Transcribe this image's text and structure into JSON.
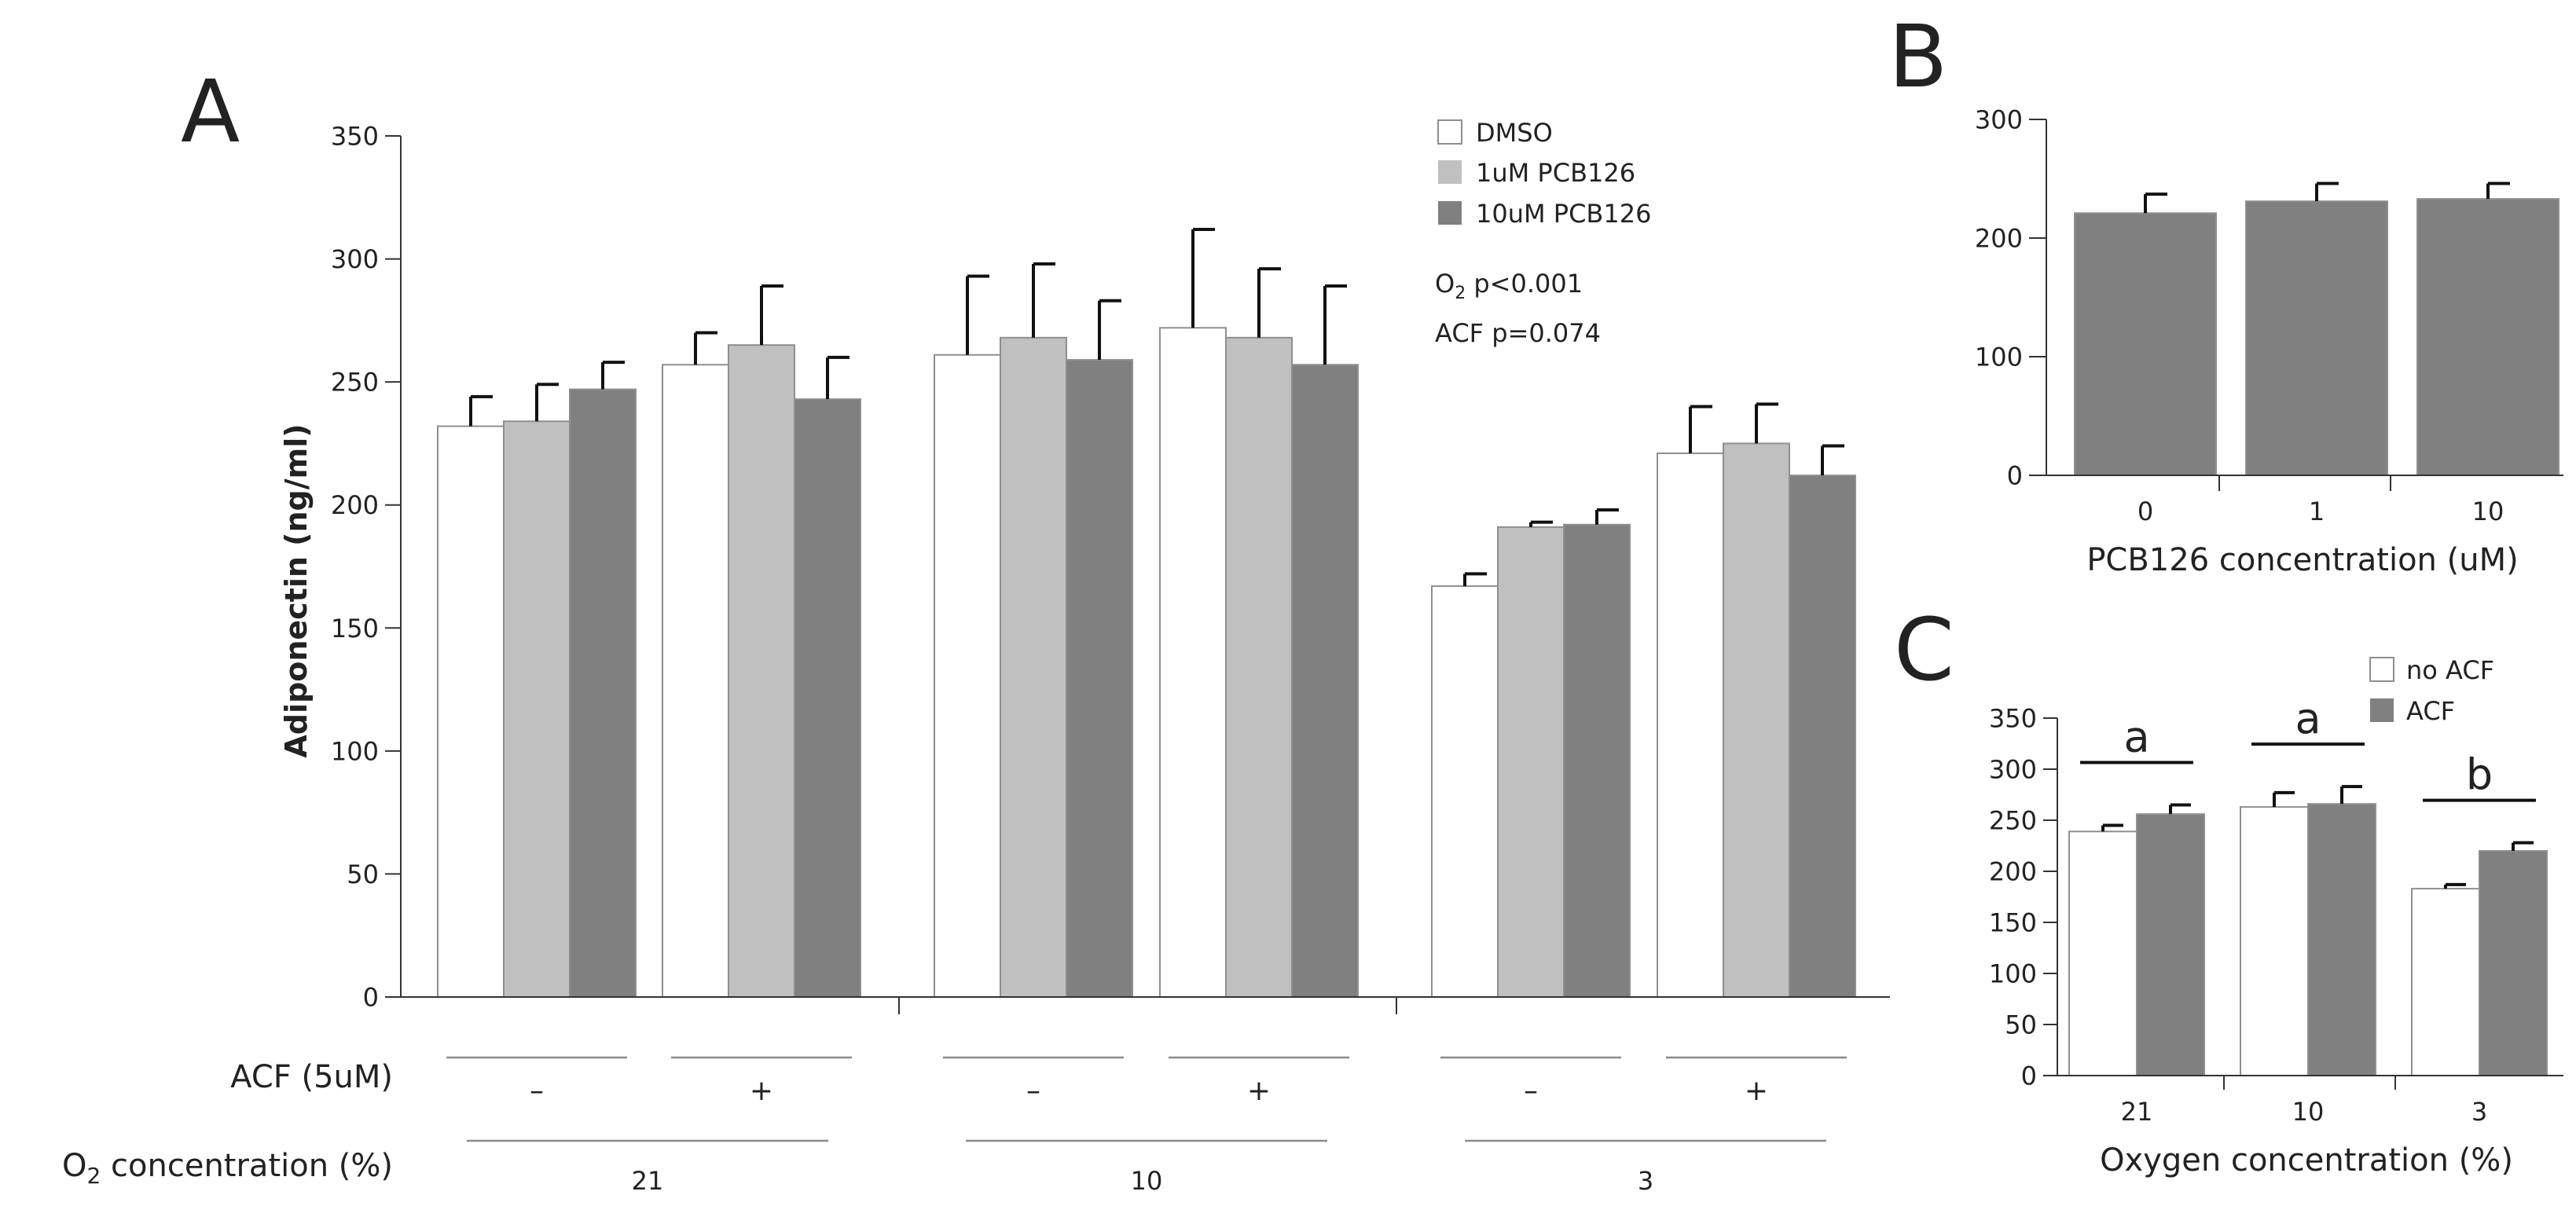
{
  "chart_data": [
    {
      "panel": "A",
      "type": "bar",
      "ylabel": "Adiponectin (ng/ml)",
      "ylim": [
        0,
        350
      ],
      "yticks": [
        "0",
        "50",
        "100",
        "150",
        "200",
        "250",
        "300",
        "350"
      ],
      "series_names": [
        "DMSO",
        "1uM PCB126",
        "10uM PCB126"
      ],
      "colors": [
        "#ffffff",
        "#c0c0c0",
        "#808080"
      ],
      "acf_label": "ACF (5uM)",
      "o2_label_main": "O",
      "o2_label_sub": "2",
      "o2_label_rest": " concentration (%)",
      "annotation_o2_main": "O",
      "annotation_o2_sub": "2",
      "annotation_o2_rest": " p<0.001",
      "annotation_acf": "ACF p=0.074",
      "groups": [
        {
          "acf": "–",
          "o2": "21",
          "values": [
            232,
            234,
            247
          ],
          "errors": [
            12,
            15,
            11
          ]
        },
        {
          "acf": "+",
          "o2": "21",
          "values": [
            257,
            265,
            243
          ],
          "errors": [
            13,
            24,
            17
          ]
        },
        {
          "acf": "–",
          "o2": "10",
          "values": [
            261,
            268,
            259
          ],
          "errors": [
            32,
            30,
            24
          ]
        },
        {
          "acf": "+",
          "o2": "10",
          "values": [
            272,
            268,
            257
          ],
          "errors": [
            40,
            28,
            32
          ]
        },
        {
          "acf": "–",
          "o2": "3",
          "values": [
            167,
            191,
            192
          ],
          "errors": [
            5,
            2,
            6
          ]
        },
        {
          "acf": "+",
          "o2": "3",
          "values": [
            221,
            225,
            212
          ],
          "errors": [
            19,
            16,
            12
          ]
        }
      ],
      "o2_levels": [
        "21",
        "10",
        "3"
      ]
    },
    {
      "panel": "B",
      "type": "bar",
      "xlabel": "PCB126 concentration (uM)",
      "ylim": [
        0,
        300
      ],
      "yticks": [
        "0",
        "100",
        "200",
        "300"
      ],
      "categories": [
        "0",
        "1",
        "10"
      ],
      "values": [
        221,
        231,
        233
      ],
      "errors": [
        16,
        15,
        13
      ],
      "color": "#808080"
    },
    {
      "panel": "C",
      "type": "bar",
      "xlabel": "Oxygen concentration (%)",
      "ylim": [
        0,
        350
      ],
      "yticks": [
        "0",
        "50",
        "100",
        "150",
        "200",
        "250",
        "300",
        "350"
      ],
      "categories": [
        "21",
        "10",
        "3"
      ],
      "series": [
        {
          "name": "no ACF",
          "color": "#ffffff",
          "values": [
            239,
            263,
            183
          ],
          "errors": [
            6,
            14,
            4
          ]
        },
        {
          "name": "ACF",
          "color": "#808080",
          "values": [
            256,
            266,
            220
          ],
          "errors": [
            9,
            17,
            8
          ]
        }
      ],
      "significance": [
        "a",
        "a",
        "b"
      ]
    }
  ]
}
